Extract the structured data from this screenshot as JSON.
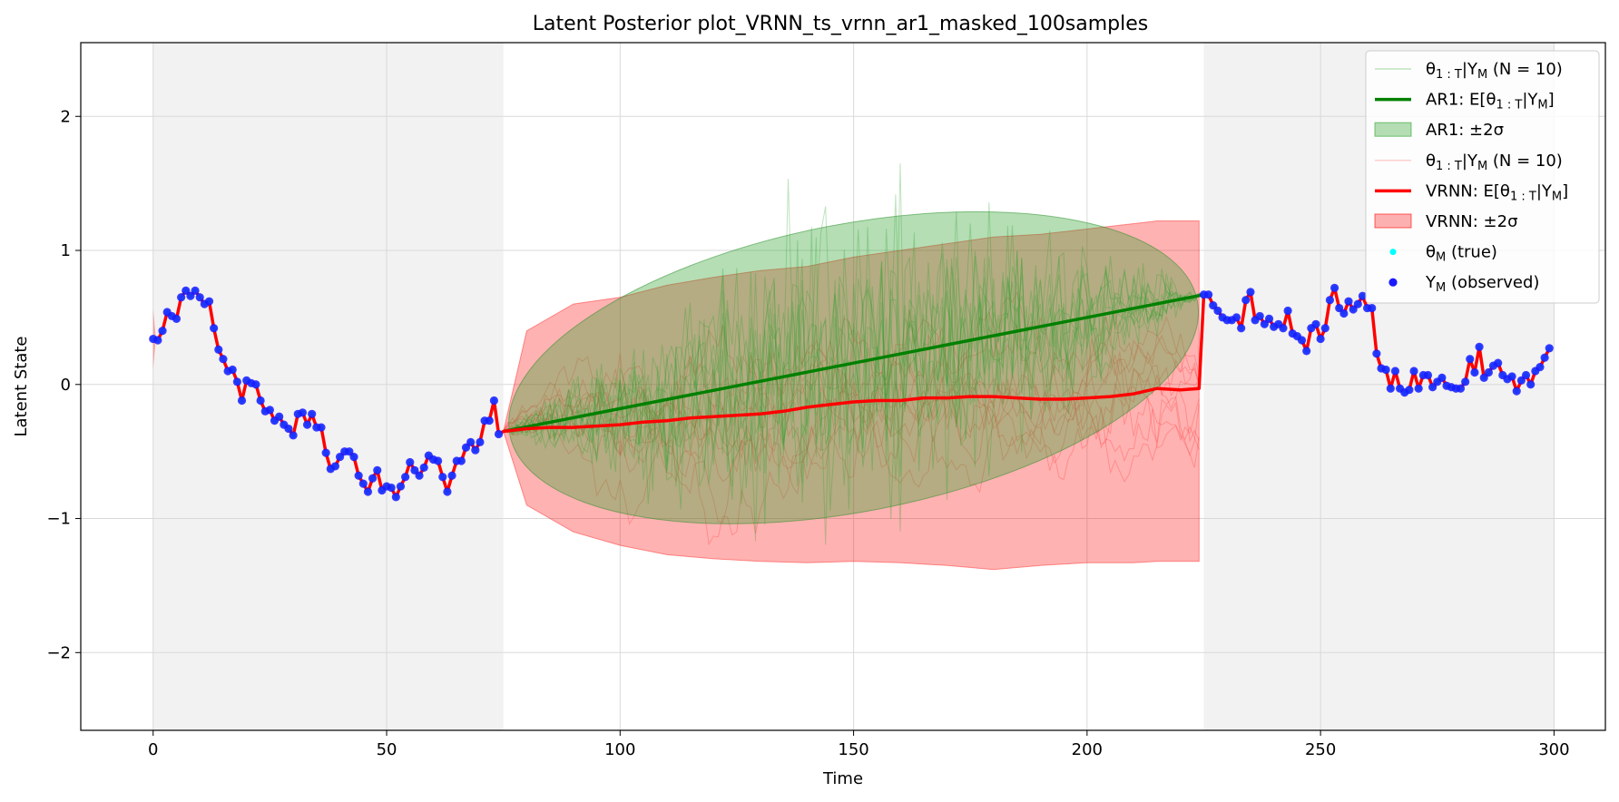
{
  "chart_data": {
    "type": "line",
    "title": "Latent Posterior plot_VRNN_ts_vrnn_ar1_masked_100samples",
    "xlabel": "Time",
    "ylabel": "Latent State",
    "xlim": [
      -15.5,
      311
    ],
    "ylim": [
      -2.58,
      2.55
    ],
    "xticks": [
      0,
      50,
      100,
      150,
      200,
      250,
      300
    ],
    "yticks": [
      -2,
      -1,
      0,
      1,
      2
    ],
    "xtick_labels": [
      "0",
      "50",
      "100",
      "150",
      "200",
      "250",
      "300"
    ],
    "ytick_labels": [
      "−2",
      "−1",
      "0",
      "1",
      "2"
    ],
    "grid": true,
    "legend_position": "upper right",
    "observed_spans": [
      [
        0,
        75
      ],
      [
        225,
        300
      ]
    ],
    "masked_span": [
      75,
      225
    ],
    "observed": {
      "x": [
        0,
        1,
        2,
        3,
        4,
        5,
        6,
        7,
        8,
        9,
        10,
        11,
        12,
        13,
        14,
        15,
        16,
        17,
        18,
        19,
        20,
        21,
        22,
        23,
        24,
        25,
        26,
        27,
        28,
        29,
        30,
        31,
        32,
        33,
        34,
        35,
        36,
        37,
        38,
        39,
        40,
        41,
        42,
        43,
        44,
        45,
        46,
        47,
        48,
        49,
        50,
        51,
        52,
        53,
        54,
        55,
        56,
        57,
        58,
        59,
        60,
        61,
        62,
        63,
        64,
        65,
        66,
        67,
        68,
        69,
        70,
        71,
        72,
        73,
        74,
        225,
        226,
        227,
        228,
        229,
        230,
        231,
        232,
        233,
        234,
        235,
        236,
        237,
        238,
        239,
        240,
        241,
        242,
        243,
        244,
        245,
        246,
        247,
        248,
        249,
        250,
        251,
        252,
        253,
        254,
        255,
        256,
        257,
        258,
        259,
        260,
        261,
        262,
        263,
        264,
        265,
        266,
        267,
        268,
        269,
        270,
        271,
        272,
        273,
        274,
        275,
        276,
        277,
        278,
        279,
        280,
        281,
        282,
        283,
        284,
        285,
        286,
        287,
        288,
        289,
        290,
        291,
        292,
        293,
        294,
        295,
        296,
        297,
        298,
        299
      ],
      "y": [
        0.34,
        0.33,
        0.4,
        0.54,
        0.51,
        0.49,
        0.65,
        0.7,
        0.66,
        0.7,
        0.65,
        0.6,
        0.62,
        0.42,
        0.26,
        0.19,
        0.1,
        0.11,
        0.02,
        -0.12,
        0.03,
        0.01,
        0.0,
        -0.12,
        -0.2,
        -0.19,
        -0.27,
        -0.24,
        -0.3,
        -0.33,
        -0.38,
        -0.22,
        -0.21,
        -0.3,
        -0.22,
        -0.32,
        -0.32,
        -0.51,
        -0.63,
        -0.61,
        -0.54,
        -0.5,
        -0.5,
        -0.54,
        -0.68,
        -0.74,
        -0.8,
        -0.7,
        -0.64,
        -0.79,
        -0.76,
        -0.77,
        -0.84,
        -0.76,
        -0.69,
        -0.58,
        -0.64,
        -0.68,
        -0.62,
        -0.53,
        -0.56,
        -0.57,
        -0.69,
        -0.8,
        -0.68,
        -0.57,
        -0.57,
        -0.47,
        -0.43,
        -0.49,
        -0.43,
        -0.27,
        -0.27,
        -0.12,
        -0.37,
        0.67,
        0.67,
        0.59,
        0.55,
        0.5,
        0.48,
        0.48,
        0.5,
        0.42,
        0.63,
        0.69,
        0.48,
        0.51,
        0.45,
        0.49,
        0.43,
        0.45,
        0.42,
        0.55,
        0.38,
        0.36,
        0.33,
        0.25,
        0.42,
        0.45,
        0.34,
        0.42,
        0.63,
        0.72,
        0.57,
        0.53,
        0.62,
        0.56,
        0.6,
        0.66,
        0.57,
        0.57,
        0.23,
        0.12,
        0.11,
        -0.03,
        0.1,
        -0.03,
        -0.06,
        -0.04,
        0.1,
        -0.03,
        0.07,
        0.07,
        -0.02,
        0.02,
        0.05,
        -0.01,
        -0.02,
        -0.03,
        -0.03,
        0.02,
        0.19,
        0.09,
        0.28,
        0.05,
        0.09,
        0.14,
        0.16,
        0.07,
        0.04,
        0.06,
        -0.05,
        0.03,
        0.07,
        0.0,
        0.1,
        0.13,
        0.2,
        0.27
      ]
    },
    "series": [
      {
        "name": "θ₁:T|Y_M (N = 10)",
        "model": "AR1",
        "kind": "samples",
        "color": "#2ca02c"
      },
      {
        "name": "AR1: E[θ₁:T|Y_M]",
        "model": "AR1",
        "kind": "mean",
        "x": [
          75,
          225
        ],
        "y": [
          -0.35,
          0.67
        ],
        "color": "#008000"
      },
      {
        "name": "AR1: ±2σ",
        "model": "AR1",
        "kind": "band",
        "color": "#2ca02c",
        "upper_peak": 1.37,
        "lower_trough": -1.12
      },
      {
        "name": "θ₁:T|Y_M (N = 10)",
        "model": "VRNN",
        "kind": "samples",
        "color": "#ff6666"
      },
      {
        "name": "VRNN: E[θ₁:T|Y_M]",
        "model": "VRNN",
        "kind": "mean",
        "x": [
          75,
          80,
          85,
          90,
          95,
          100,
          105,
          110,
          115,
          120,
          125,
          130,
          135,
          140,
          145,
          150,
          155,
          160,
          165,
          170,
          175,
          180,
          185,
          190,
          195,
          200,
          205,
          210,
          215,
          220,
          224
        ],
        "y": [
          -0.35,
          -0.33,
          -0.32,
          -0.32,
          -0.31,
          -0.3,
          -0.28,
          -0.27,
          -0.25,
          -0.24,
          -0.23,
          -0.22,
          -0.2,
          -0.17,
          -0.15,
          -0.13,
          -0.12,
          -0.12,
          -0.1,
          -0.1,
          -0.09,
          -0.09,
          -0.1,
          -0.11,
          -0.11,
          -0.1,
          -0.09,
          -0.07,
          -0.03,
          -0.04,
          -0.03
        ],
        "color": "#ff0000"
      },
      {
        "name": "VRNN: ±2σ",
        "model": "VRNN",
        "kind": "band",
        "x": [
          75,
          80,
          90,
          100,
          110,
          120,
          130,
          140,
          150,
          160,
          170,
          180,
          190,
          200,
          210,
          215,
          220,
          224
        ],
        "upper": [
          -0.35,
          0.4,
          0.6,
          0.65,
          0.74,
          0.8,
          0.85,
          0.88,
          0.95,
          1.0,
          1.05,
          1.1,
          1.12,
          1.16,
          1.2,
          1.22,
          1.22,
          1.22
        ],
        "lower": [
          -0.35,
          -0.9,
          -1.1,
          -1.2,
          -1.27,
          -1.3,
          -1.32,
          -1.33,
          -1.32,
          -1.33,
          -1.35,
          -1.38,
          -1.35,
          -1.33,
          -1.33,
          -1.32,
          -1.32,
          -1.32
        ],
        "color": "#ff0000"
      },
      {
        "name": "θ_M (true)",
        "kind": "scatter",
        "color": "#00ffff"
      },
      {
        "name": "Y_M (observed)",
        "kind": "scatter",
        "color": "#0000ff"
      }
    ]
  },
  "legend": [
    {
      "main": "θ",
      "sub": "1 : T",
      "rest": "|Y",
      "sub2": "M",
      "tail": " (N = 10)"
    },
    {
      "main": "AR1: E[θ",
      "sub": "1 : T",
      "rest": "|Y",
      "sub2": "M",
      "tail": "]"
    },
    {
      "main": "AR1: ±2σ",
      "sub": "",
      "rest": "",
      "sub2": "",
      "tail": ""
    },
    {
      "main": "θ",
      "sub": "1 : T",
      "rest": "|Y",
      "sub2": "M",
      "tail": " (N = 10)"
    },
    {
      "main": "VRNN: E[θ",
      "sub": "1 : T",
      "rest": "|Y",
      "sub2": "M",
      "tail": "]"
    },
    {
      "main": "VRNN: ±2σ",
      "sub": "",
      "rest": "",
      "sub2": "",
      "tail": ""
    },
    {
      "main": "θ",
      "sub": "M",
      "rest": " (true)",
      "sub2": "",
      "tail": ""
    },
    {
      "main": "Y",
      "sub": "M",
      "rest": " (observed)",
      "sub2": "",
      "tail": ""
    }
  ]
}
